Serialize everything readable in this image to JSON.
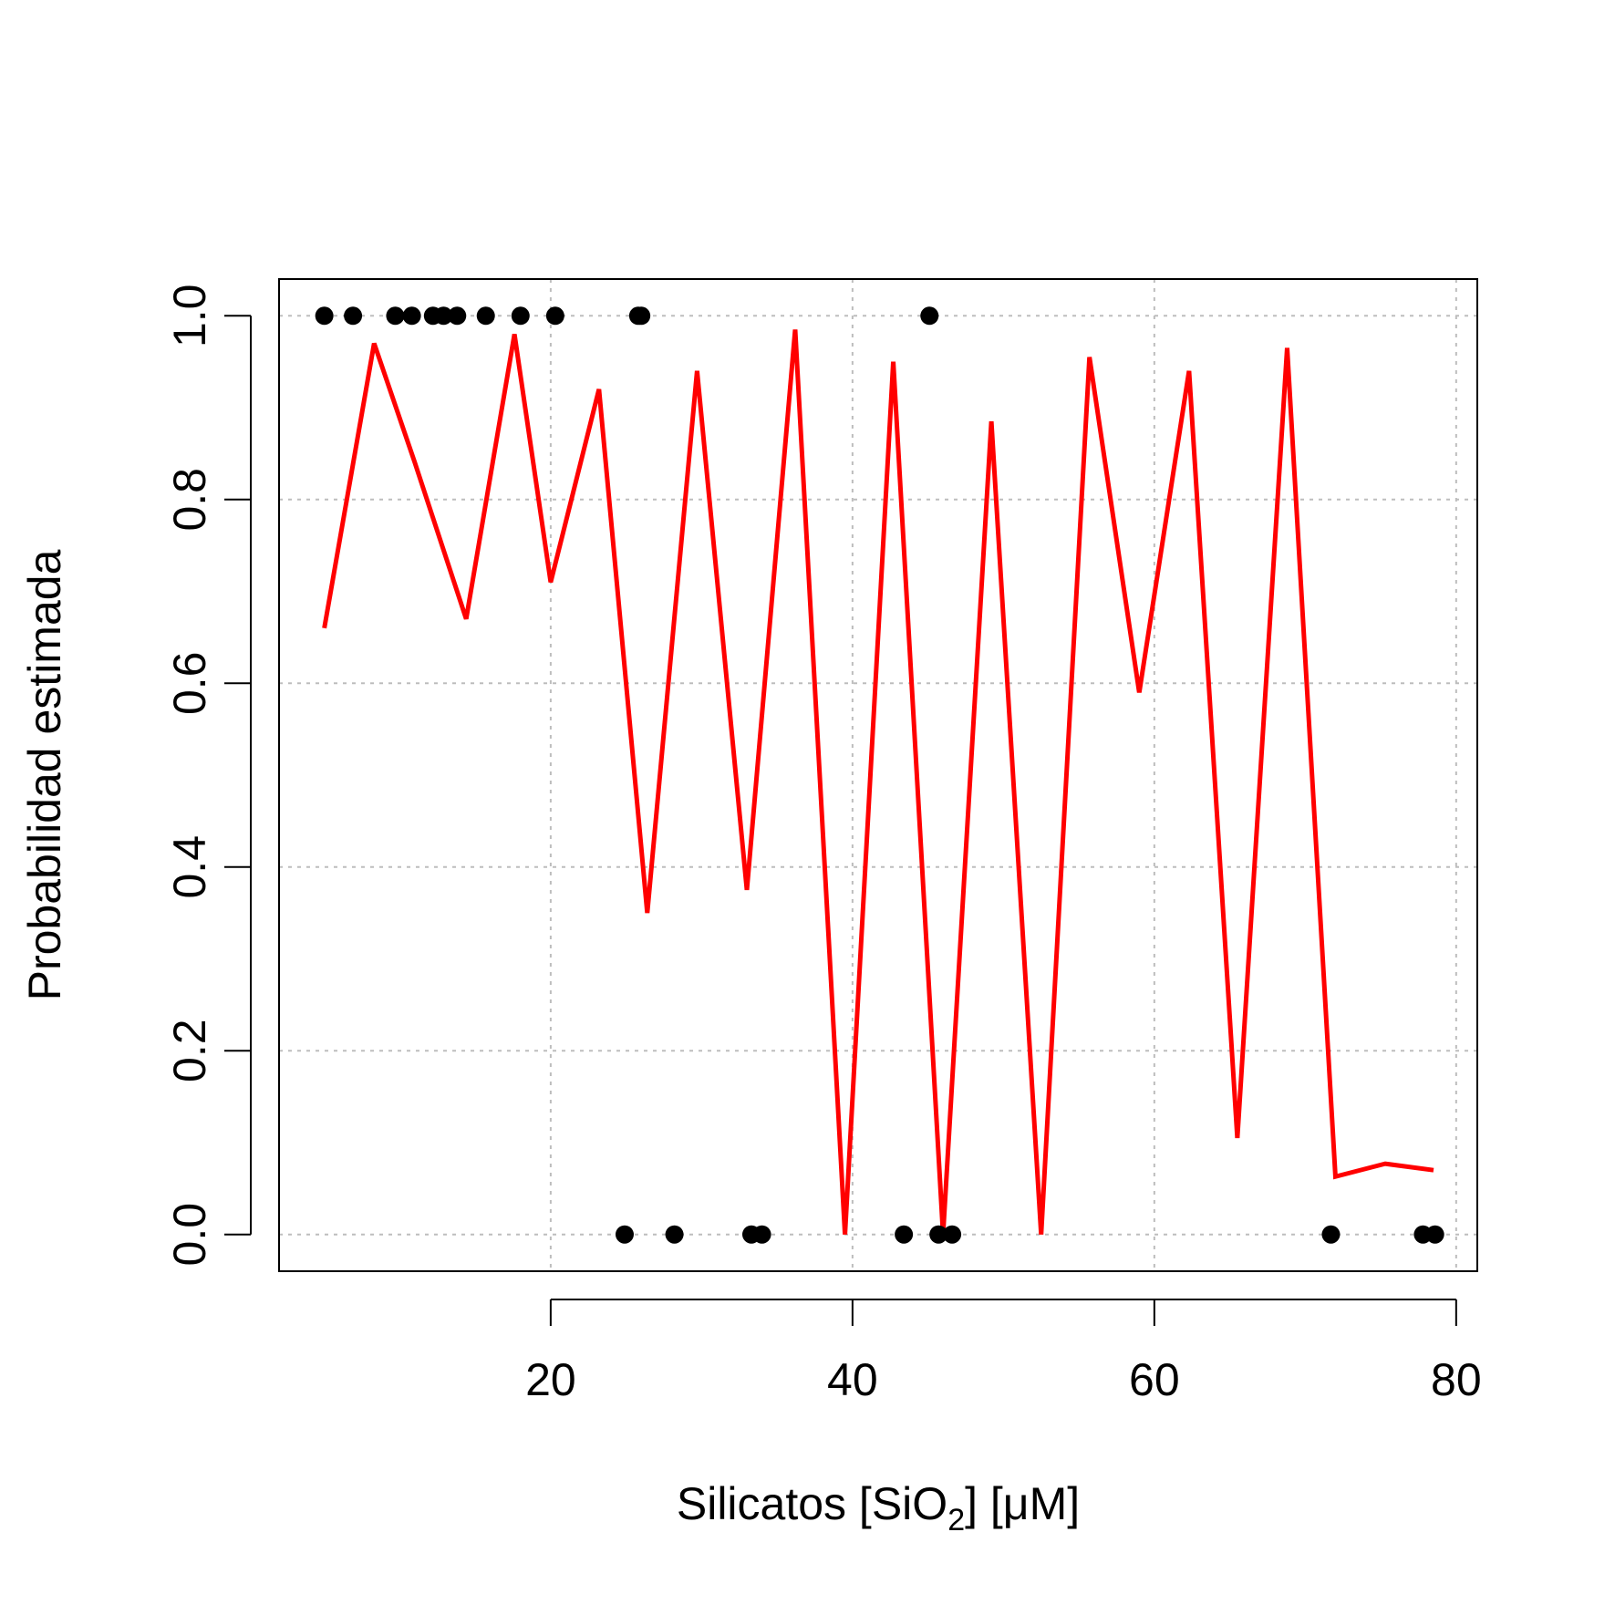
{
  "chart_data": {
    "type": "line",
    "title": "",
    "xlabel": {
      "prefix": "Silicatos [SiO",
      "subscript": "2",
      "suffix": "] [μM]"
    },
    "ylabel": "Probabilidad estimada",
    "xlim": [
      2,
      81.4
    ],
    "ylim": [
      -0.04,
      1.04
    ],
    "x_ticks": [
      20,
      40,
      60,
      80
    ],
    "x_tick_labels": [
      "20",
      "40",
      "60",
      "80"
    ],
    "y_ticks": [
      0.0,
      0.2,
      0.4,
      0.6,
      0.8,
      1.0
    ],
    "y_tick_labels": [
      "0.0",
      "0.2",
      "0.4",
      "0.6",
      "0.8",
      "1.0"
    ],
    "grid": true,
    "colors": {
      "line": "#ff0000",
      "points": "#000000",
      "grid": "#bdbdbd"
    },
    "series": [
      {
        "type": "line",
        "x": [
          5.0,
          8.3,
          11.0,
          14.4,
          17.6,
          20.0,
          23.2,
          26.4,
          29.7,
          33.0,
          36.2,
          39.5,
          42.7,
          46.0,
          49.2,
          52.5,
          55.7,
          59.0,
          62.3,
          65.5,
          68.8,
          72.0,
          75.3,
          78.5
        ],
        "values": [
          0.66,
          0.97,
          0.84,
          0.67,
          0.98,
          0.71,
          0.92,
          0.35,
          0.94,
          0.375,
          0.985,
          0.0,
          0.95,
          0.0,
          0.885,
          0.0,
          0.955,
          0.59,
          0.94,
          0.105,
          0.965,
          0.063,
          0.077,
          0.07
        ]
      },
      {
        "type": "scatter",
        "x": [
          5.0,
          6.9,
          9.7,
          10.8,
          12.2,
          12.9,
          13.8,
          15.7,
          18.0,
          20.3,
          25.8,
          26.0,
          45.1,
          24.9,
          28.2,
          33.3,
          34.0,
          43.4,
          45.7,
          46.6,
          71.7,
          77.8,
          78.6
        ],
        "values": [
          1,
          1,
          1,
          1,
          1,
          1,
          1,
          1,
          1,
          1,
          1,
          1,
          1,
          0,
          0,
          0,
          0,
          0,
          0,
          0,
          0,
          0,
          0
        ]
      }
    ]
  }
}
